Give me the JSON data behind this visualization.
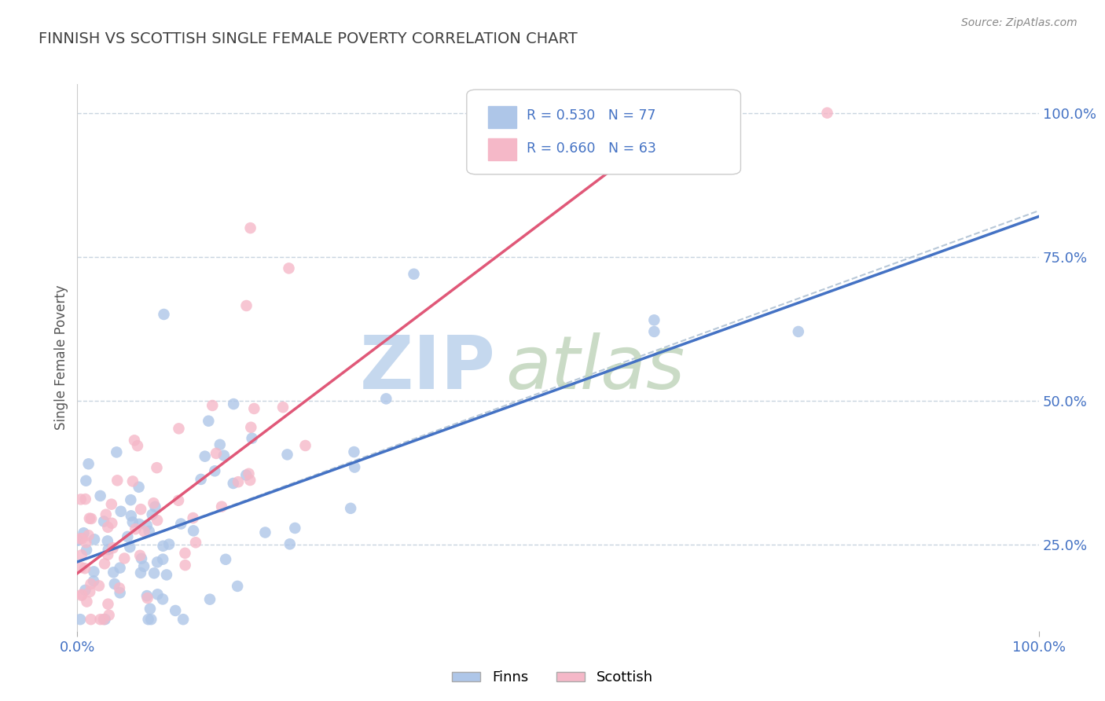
{
  "title": "FINNISH VS SCOTTISH SINGLE FEMALE POVERTY CORRELATION CHART",
  "source_text": "Source: ZipAtlas.com",
  "ylabel": "Single Female Poverty",
  "legend_finns": "Finns",
  "legend_scottish": "Scottish",
  "finns_R": 0.53,
  "finns_N": 77,
  "scottish_R": 0.66,
  "scottish_N": 63,
  "finns_color": "#aec6e8",
  "scottish_color": "#f5b8c8",
  "finns_line_color": "#4472c4",
  "scottish_line_color": "#e05878",
  "ref_line_color": "#b8c8d8",
  "background_color": "#ffffff",
  "grid_color": "#c8d4e0",
  "axis_label_color": "#4472c4",
  "title_color": "#404040",
  "watermark_zip_color": "#c5d8ee",
  "watermark_atlas_color": "#c5d8c0",
  "finns_line_x0": 0.0,
  "finns_line_y0": 0.22,
  "finns_line_x1": 1.0,
  "finns_line_y1": 0.82,
  "scottish_line_x0": 0.0,
  "scottish_line_y0": 0.2,
  "scottish_line_x1": 0.65,
  "scottish_line_y1": 1.02,
  "ref_line_x0": 0.0,
  "ref_line_y0": 0.22,
  "ref_line_x1": 1.0,
  "ref_line_y1": 0.83,
  "xlim": [
    0.0,
    1.0
  ],
  "ylim": [
    0.1,
    1.05
  ],
  "yticks_right": [
    0.25,
    0.5,
    0.75,
    1.0
  ],
  "ytick_labels_right": [
    "25.0%",
    "50.0%",
    "75.0%",
    "100.0%"
  ]
}
